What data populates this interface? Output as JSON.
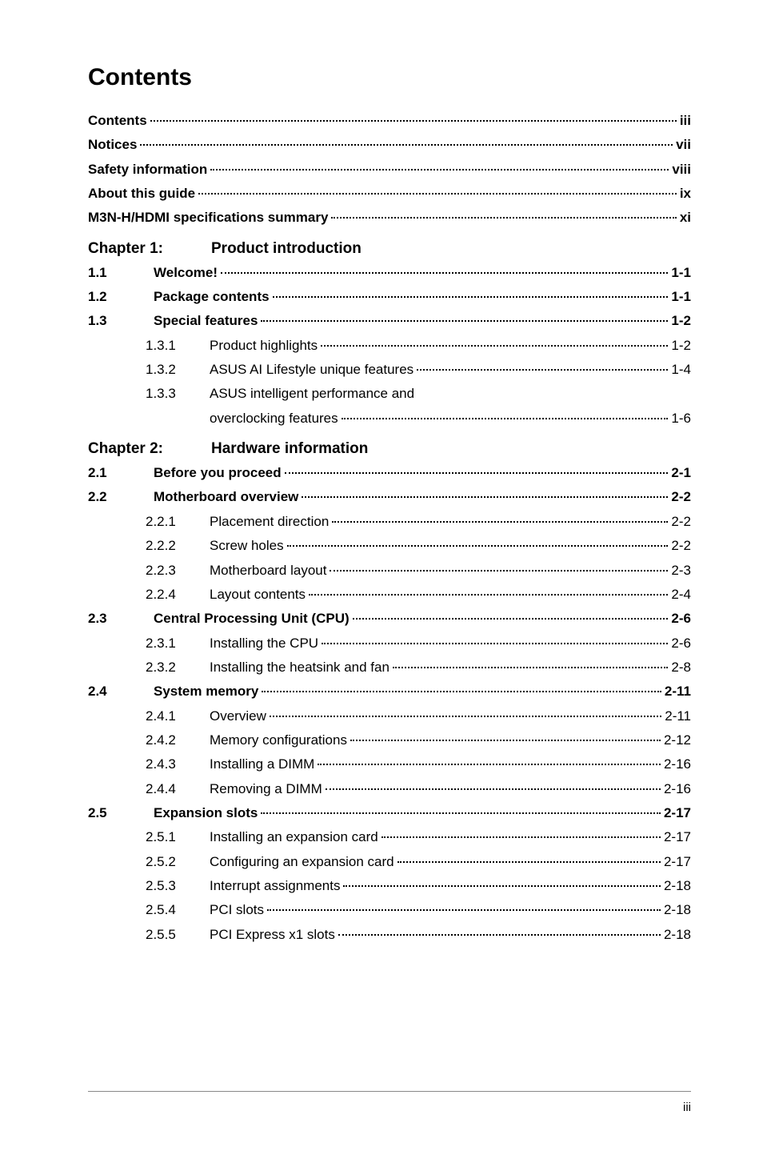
{
  "title": "Contents",
  "front": [
    {
      "label": "Contents",
      "page": "iii"
    },
    {
      "label": "Notices",
      "page": "vii"
    },
    {
      "label": "Safety information",
      "page": "viii"
    },
    {
      "label": "About this guide",
      "page": "ix"
    },
    {
      "label": "M3N-H/HDMI specifications summary",
      "page": "xi"
    }
  ],
  "ch1": {
    "chapter_label": "Chapter 1:",
    "chapter_title": "Product introduction",
    "rows": [
      {
        "type": "sec",
        "num": "1.1",
        "label": "Welcome!",
        "page": "1-1"
      },
      {
        "type": "sec",
        "num": "1.2",
        "label": "Package contents",
        "page": "1-1"
      },
      {
        "type": "sec",
        "num": "1.3",
        "label": "Special features",
        "page": "1-2"
      },
      {
        "type": "sub",
        "num": "1.3.1",
        "label": "Product highlights",
        "page": "1-2"
      },
      {
        "type": "sub",
        "num": "1.3.2",
        "label": "ASUS AI Lifestyle unique features",
        "page": "1-4"
      },
      {
        "type": "sub2",
        "num": "1.3.3",
        "label": "ASUS intelligent performance and",
        "label2": "overclocking features",
        "page": "1-6"
      }
    ]
  },
  "ch2": {
    "chapter_label": "Chapter 2:",
    "chapter_title": "Hardware information",
    "rows": [
      {
        "type": "sec",
        "num": "2.1",
        "label": "Before you proceed",
        "page": "2-1"
      },
      {
        "type": "sec",
        "num": "2.2",
        "label": "Motherboard overview",
        "page": "2-2"
      },
      {
        "type": "sub",
        "num": "2.2.1",
        "label": "Placement direction",
        "page": "2-2"
      },
      {
        "type": "sub",
        "num": "2.2.2",
        "label": "Screw holes",
        "page": "2-2"
      },
      {
        "type": "sub",
        "num": "2.2.3",
        "label": "Motherboard layout",
        "page": "2-3"
      },
      {
        "type": "sub",
        "num": "2.2.4",
        "label": "Layout contents",
        "page": "2-4"
      },
      {
        "type": "sec",
        "num": "2.3",
        "label": "Central Processing Unit (CPU)",
        "page": "2-6"
      },
      {
        "type": "sub",
        "num": "2.3.1",
        "label": "Installing the CPU",
        "page": "2-6"
      },
      {
        "type": "sub",
        "num": "2.3.2",
        "label": "Installing the heatsink and fan",
        "page": "2-8"
      },
      {
        "type": "sec",
        "num": "2.4",
        "label": "System memory",
        "page": "2-11"
      },
      {
        "type": "sub",
        "num": "2.4.1",
        "label": "Overview",
        "page": "2-11"
      },
      {
        "type": "sub",
        "num": "2.4.2",
        "label": "Memory configurations",
        "page": "2-12"
      },
      {
        "type": "sub",
        "num": "2.4.3",
        "label": "Installing a DIMM",
        "page": "2-16"
      },
      {
        "type": "sub",
        "num": "2.4.4",
        "label": "Removing a DIMM",
        "page": "2-16"
      },
      {
        "type": "sec",
        "num": "2.5",
        "label": "Expansion slots",
        "page": "2-17"
      },
      {
        "type": "sub",
        "num": "2.5.1",
        "label": "Installing an expansion card",
        "page": "2-17"
      },
      {
        "type": "sub",
        "num": "2.5.2",
        "label": "Configuring an expansion card",
        "page": "2-17"
      },
      {
        "type": "sub",
        "num": "2.5.3",
        "label": "Interrupt assignments",
        "page": "2-18"
      },
      {
        "type": "sub",
        "num": "2.5.4",
        "label": "PCI slots",
        "page": "2-18"
      },
      {
        "type": "sub",
        "num": "2.5.5",
        "label": "PCI Express x1 slots",
        "page": "2-18"
      }
    ]
  },
  "footer_page": "iii"
}
